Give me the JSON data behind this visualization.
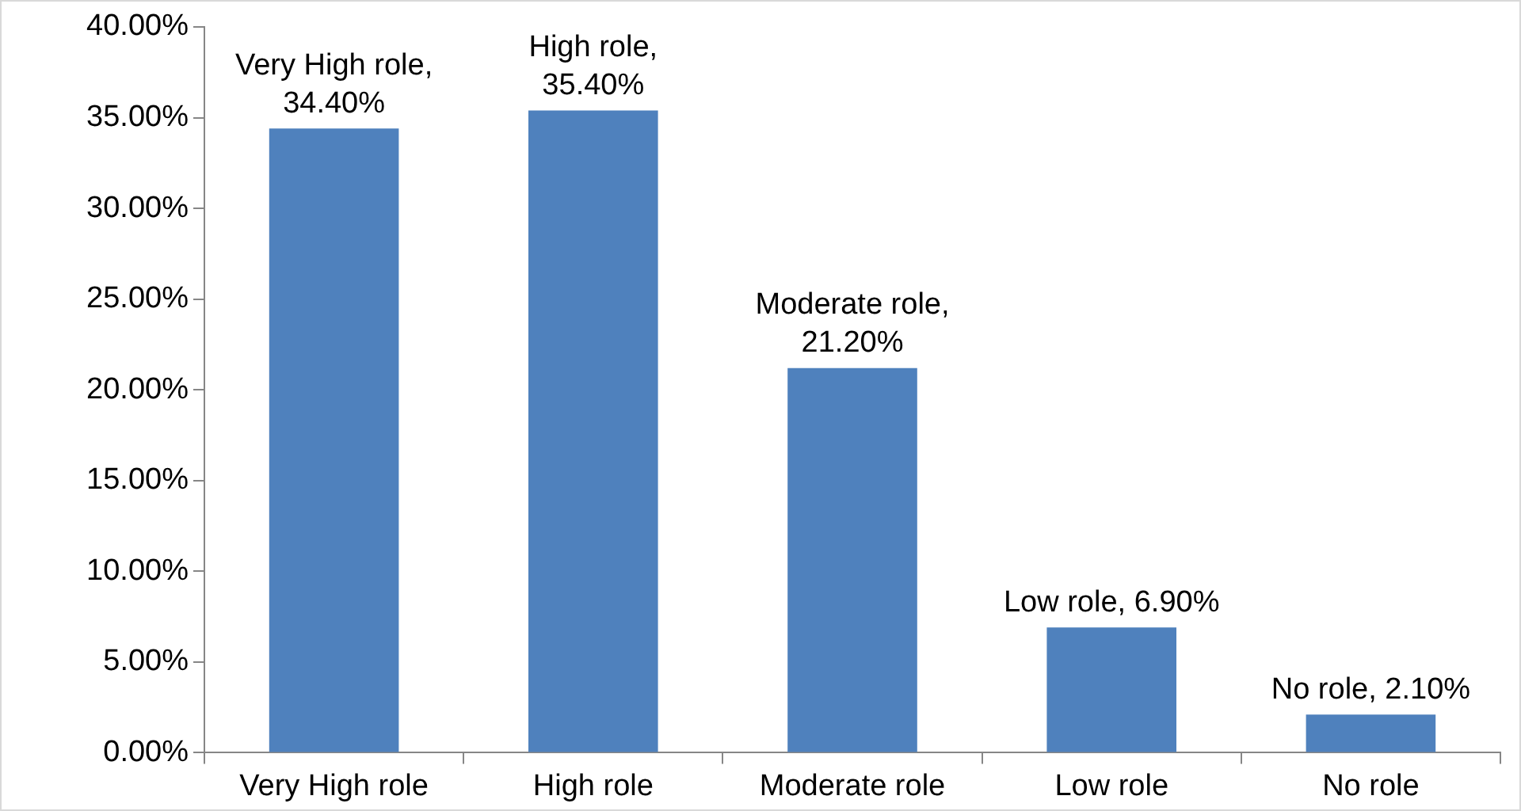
{
  "chart_data": {
    "type": "bar",
    "categories": [
      "Very High role",
      "High role",
      "Moderate role",
      "Low role",
      "No role"
    ],
    "values": [
      34.4,
      35.4,
      21.2,
      6.9,
      2.1
    ],
    "value_labels": [
      "Very High role, 34.40%",
      "High role, 35.40%",
      "Moderate role, 21.20%",
      "Low role, 6.90%",
      "No role, 2.10%"
    ],
    "color": "#4f81bd",
    "ylim": [
      0,
      40
    ],
    "yticks": [
      {
        "value": 0,
        "label": "0.00%"
      },
      {
        "value": 5,
        "label": "5.00%"
      },
      {
        "value": 10,
        "label": "10.00%"
      },
      {
        "value": 15,
        "label": "15.00%"
      },
      {
        "value": 20,
        "label": "20.00%"
      },
      {
        "value": 25,
        "label": "25.00%"
      },
      {
        "value": 30,
        "label": "30.00%"
      },
      {
        "value": 35,
        "label": "35.00%"
      },
      {
        "value": 40,
        "label": "40.00%"
      }
    ],
    "legend": false
  }
}
